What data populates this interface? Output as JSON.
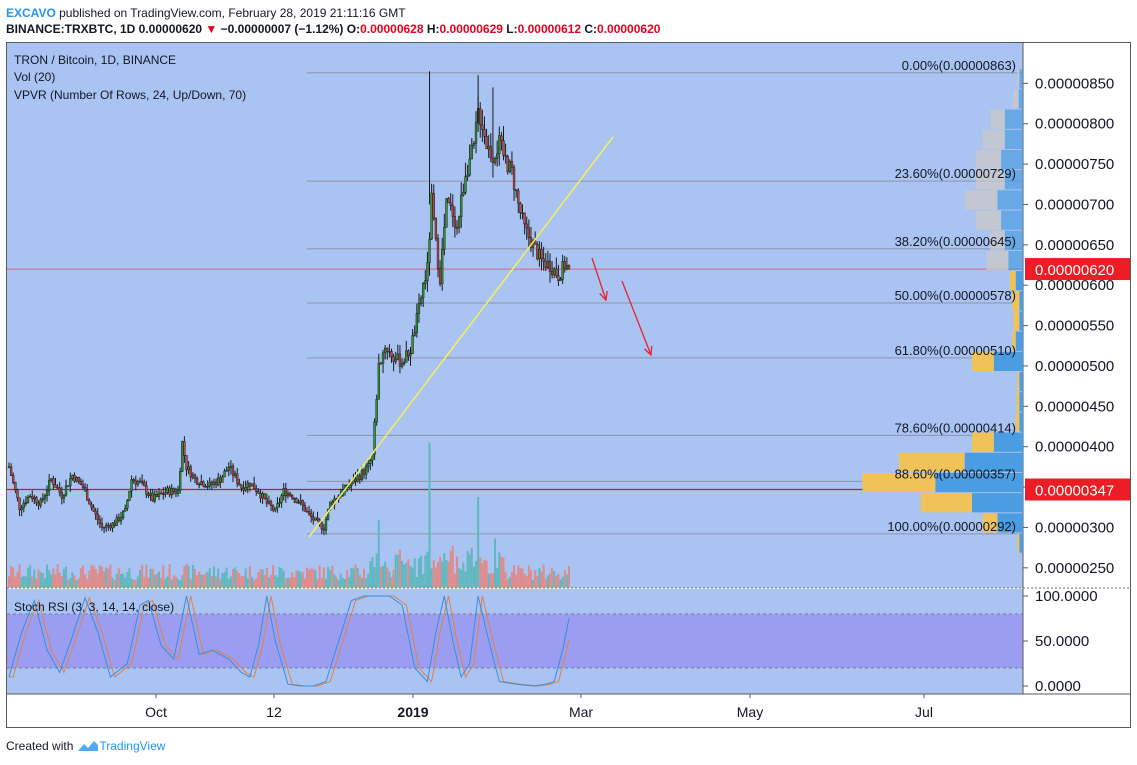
{
  "header": {
    "brand": "EXCAVO",
    "published": " published on TradingView.com, February 28, 2019 21:11:16 GMT",
    "symbol": "BINANCE:TRXBTC, 1D ",
    "last": "0.00000620",
    "change": "−0.00000007 (−1.12%)",
    "o_label": "O:",
    "o": "0.00000628",
    "h_label": "H:",
    "h": "0.00000629",
    "l_label": "L:",
    "l": "0.00000612",
    "c_label": "C:",
    "c": "0.00000620"
  },
  "legend": {
    "title": "TRON / Bitcoin, 1D, BINANCE",
    "vol": "Vol (20)",
    "vpvr": "VPVR (Number Of Rows, 24, Up/Down, 70)",
    "stoch": "Stoch RSI (3, 3, 14, 14, close)"
  },
  "footer": {
    "created": "Created with",
    "brand": "TradingView"
  },
  "colors": {
    "plot_bg": "#a9c3f2",
    "rsi_band": "#9b9df3",
    "up_candle": "#2e9a2e",
    "down_candle": "#c2454a",
    "vol_up": "#5fb8c0",
    "vol_down": "#e08a8a",
    "fib_line": "#8f95a8",
    "trendline": "#f5f05a",
    "arrow": "#e8222e",
    "price_tag": "#ee1c24",
    "vpvr_up": "#4b9de3",
    "vpvr_down": "#f0c35a",
    "vpvr_value_area_up": "#c3d2ec",
    "stoch_k": "#3b8ed8",
    "stoch_d": "#e0824a"
  },
  "chart_data": [
    {
      "type": "candlestick",
      "title": "TRON / Bitcoin, 1D, BINANCE",
      "y_axis_ticks": [
        "0.00000850",
        "0.00000800",
        "0.00000750",
        "0.00000700",
        "0.00000650",
        "0.00000600",
        "0.00000550",
        "0.00000500",
        "0.00000450",
        "0.00000400",
        "0.00000350",
        "0.00000300",
        "0.00000250"
      ],
      "y_tick_values": [
        850,
        800,
        750,
        700,
        650,
        600,
        550,
        500,
        450,
        400,
        350,
        300,
        250
      ],
      "y_unit_scale": "1e-8 BTC",
      "x_axis_ticks": [
        "Oct",
        "12",
        "2019",
        "Mar",
        "May",
        "Jul"
      ],
      "price_markers": [
        {
          "label": "0.00000620",
          "value": 620
        },
        {
          "label": "0.00000347",
          "value": 347
        }
      ],
      "fibonacci": [
        {
          "label": "0.00%(0.00000863)",
          "value": 863
        },
        {
          "label": "23.60%(0.00000729)",
          "value": 729
        },
        {
          "label": "38.20%(0.00000645)",
          "value": 645
        },
        {
          "label": "50.00%(0.00000578)",
          "value": 578
        },
        {
          "label": "61.80%(0.00000510)",
          "value": 510
        },
        {
          "label": "78.60%(0.00000414)",
          "value": 414
        },
        {
          "label": "88.60%(0.00000357)",
          "value": 357
        },
        {
          "label": "100.00%(0.00000292)",
          "value": 292
        }
      ],
      "anchors": [
        {
          "t": 0,
          "c": 375
        },
        {
          "t": 5,
          "c": 325
        },
        {
          "t": 10,
          "c": 340
        },
        {
          "t": 15,
          "c": 330
        },
        {
          "t": 20,
          "c": 360
        },
        {
          "t": 25,
          "c": 340
        },
        {
          "t": 30,
          "c": 365
        },
        {
          "t": 35,
          "c": 350
        },
        {
          "t": 40,
          "c": 320
        },
        {
          "t": 44,
          "c": 300
        },
        {
          "t": 50,
          "c": 305
        },
        {
          "t": 55,
          "c": 320
        },
        {
          "t": 58,
          "c": 360
        },
        {
          "t": 62,
          "c": 355
        },
        {
          "t": 68,
          "c": 335
        },
        {
          "t": 75,
          "c": 345
        },
        {
          "t": 80,
          "c": 345
        },
        {
          "t": 82,
          "c": 405
        },
        {
          "t": 84,
          "c": 375
        },
        {
          "t": 88,
          "c": 360
        },
        {
          "t": 95,
          "c": 352
        },
        {
          "t": 100,
          "c": 360
        },
        {
          "t": 104,
          "c": 375
        },
        {
          "t": 110,
          "c": 350
        },
        {
          "t": 114,
          "c": 355
        },
        {
          "t": 118,
          "c": 345
        },
        {
          "t": 122,
          "c": 330
        },
        {
          "t": 126,
          "c": 320
        },
        {
          "t": 130,
          "c": 345
        },
        {
          "t": 134,
          "c": 340
        },
        {
          "t": 138,
          "c": 330
        },
        {
          "t": 142,
          "c": 315
        },
        {
          "t": 146,
          "c": 305
        },
        {
          "t": 149,
          "c": 300
        },
        {
          "t": 152,
          "c": 330
        },
        {
          "t": 156,
          "c": 340
        },
        {
          "t": 160,
          "c": 350
        },
        {
          "t": 165,
          "c": 362
        },
        {
          "t": 170,
          "c": 375
        },
        {
          "t": 172,
          "c": 390
        },
        {
          "t": 175,
          "c": 500
        },
        {
          "t": 178,
          "c": 525
        },
        {
          "t": 182,
          "c": 510
        },
        {
          "t": 186,
          "c": 505
        },
        {
          "t": 190,
          "c": 520
        },
        {
          "t": 194,
          "c": 570
        },
        {
          "t": 196,
          "c": 600
        },
        {
          "t": 198,
          "c": 620
        },
        {
          "t": 200,
          "c": 705
        },
        {
          "t": 202,
          "c": 650
        },
        {
          "t": 204,
          "c": 610
        },
        {
          "t": 207,
          "c": 700
        },
        {
          "t": 210,
          "c": 690
        },
        {
          "t": 212,
          "c": 670
        },
        {
          "t": 216,
          "c": 740
        },
        {
          "t": 220,
          "c": 770
        },
        {
          "t": 222,
          "c": 815
        },
        {
          "t": 224,
          "c": 800
        },
        {
          "t": 226,
          "c": 775
        },
        {
          "t": 229,
          "c": 760
        },
        {
          "t": 232,
          "c": 775
        },
        {
          "t": 235,
          "c": 755
        },
        {
          "t": 238,
          "c": 740
        },
        {
          "t": 241,
          "c": 700
        },
        {
          "t": 244,
          "c": 670
        },
        {
          "t": 248,
          "c": 650
        },
        {
          "t": 252,
          "c": 630
        },
        {
          "t": 256,
          "c": 625
        },
        {
          "t": 260,
          "c": 612
        },
        {
          "t": 263,
          "c": 625
        },
        {
          "t": 265,
          "c": 620
        }
      ]
    },
    {
      "type": "bar",
      "title": "Vol (20)",
      "note": "daily volume histogram, relative scale",
      "spikes": [
        {
          "t": 199,
          "rel": 1.0
        },
        {
          "t": 175,
          "rel": 0.35
        },
        {
          "t": 222,
          "rel": 0.55
        },
        {
          "t": 230,
          "rel": 0.35
        }
      ]
    },
    {
      "type": "line",
      "title": "Stoch RSI (3, 3, 14, 14, close)",
      "y_axis_ticks": [
        "100.0000",
        "50.0000",
        "0.0000"
      ],
      "ylim": [
        0,
        100
      ],
      "bands": [
        20,
        80
      ],
      "k_anchors": [
        {
          "t": 0,
          "v": 10
        },
        {
          "t": 6,
          "v": 60
        },
        {
          "t": 12,
          "v": 95
        },
        {
          "t": 18,
          "v": 40
        },
        {
          "t": 24,
          "v": 15
        },
        {
          "t": 30,
          "v": 55
        },
        {
          "t": 36,
          "v": 98
        },
        {
          "t": 42,
          "v": 60
        },
        {
          "t": 48,
          "v": 10
        },
        {
          "t": 56,
          "v": 25
        },
        {
          "t": 62,
          "v": 90
        },
        {
          "t": 66,
          "v": 95
        },
        {
          "t": 72,
          "v": 45
        },
        {
          "t": 78,
          "v": 30
        },
        {
          "t": 84,
          "v": 100
        },
        {
          "t": 90,
          "v": 35
        },
        {
          "t": 96,
          "v": 40
        },
        {
          "t": 104,
          "v": 30
        },
        {
          "t": 110,
          "v": 15
        },
        {
          "t": 114,
          "v": 10
        },
        {
          "t": 118,
          "v": 45
        },
        {
          "t": 122,
          "v": 100
        },
        {
          "t": 126,
          "v": 50
        },
        {
          "t": 132,
          "v": 2
        },
        {
          "t": 138,
          "v": 0
        },
        {
          "t": 144,
          "v": 0
        },
        {
          "t": 150,
          "v": 5
        },
        {
          "t": 156,
          "v": 50
        },
        {
          "t": 162,
          "v": 95
        },
        {
          "t": 168,
          "v": 100
        },
        {
          "t": 174,
          "v": 100
        },
        {
          "t": 180,
          "v": 100
        },
        {
          "t": 186,
          "v": 90
        },
        {
          "t": 192,
          "v": 20
        },
        {
          "t": 198,
          "v": 5
        },
        {
          "t": 202,
          "v": 60
        },
        {
          "t": 206,
          "v": 100
        },
        {
          "t": 210,
          "v": 50
        },
        {
          "t": 214,
          "v": 10
        },
        {
          "t": 218,
          "v": 25
        },
        {
          "t": 222,
          "v": 100
        },
        {
          "t": 226,
          "v": 60
        },
        {
          "t": 232,
          "v": 5
        },
        {
          "t": 240,
          "v": 2
        },
        {
          "t": 248,
          "v": 0
        },
        {
          "t": 254,
          "v": 2
        },
        {
          "t": 258,
          "v": 5
        },
        {
          "t": 262,
          "v": 40
        },
        {
          "t": 265,
          "v": 75
        }
      ]
    },
    {
      "type": "bar",
      "title": "VPVR (Number Of Rows, 24, Up/Down, 70)",
      "rows": [
        {
          "price": 855,
          "up": 0.5,
          "down": 0.3,
          "va": true
        },
        {
          "price": 830,
          "up": 0.6,
          "down": 0.8,
          "va": true
        },
        {
          "price": 805,
          "up": 2.5,
          "down": 2.0,
          "va": true
        },
        {
          "price": 780,
          "up": 2.5,
          "down": 3.0,
          "va": true
        },
        {
          "price": 755,
          "up": 3.0,
          "down": 3.5,
          "va": true
        },
        {
          "price": 730,
          "up": 2.5,
          "down": 4.0,
          "va": true
        },
        {
          "price": 705,
          "up": 3.5,
          "down": 4.5,
          "va": true
        },
        {
          "price": 680,
          "up": 3.0,
          "down": 3.5,
          "va": true
        },
        {
          "price": 655,
          "up": 2.5,
          "down": 2.0,
          "va": true
        },
        {
          "price": 630,
          "up": 2.0,
          "down": 3.0,
          "va": true
        },
        {
          "price": 605,
          "up": 1.0,
          "down": 0.8,
          "va": false
        },
        {
          "price": 580,
          "up": 0.5,
          "down": 1.0,
          "va": false
        },
        {
          "price": 555,
          "up": 0.5,
          "down": 0.8,
          "va": false
        },
        {
          "price": 530,
          "up": 1.0,
          "down": 0.5,
          "va": false
        },
        {
          "price": 505,
          "up": 4.0,
          "down": 3.0,
          "va": false
        },
        {
          "price": 480,
          "up": 0.5,
          "down": 0.3,
          "va": false
        },
        {
          "price": 455,
          "up": 0.5,
          "down": 0.4,
          "va": false
        },
        {
          "price": 430,
          "up": 0.5,
          "down": 0.5,
          "va": false
        },
        {
          "price": 405,
          "up": 4.0,
          "down": 3.0,
          "va": false
        },
        {
          "price": 380,
          "up": 8.0,
          "down": 9.0,
          "va": false
        },
        {
          "price": 355,
          "up": 12.0,
          "down": 10.0,
          "va": false
        },
        {
          "price": 330,
          "up": 7.0,
          "down": 7.0,
          "va": false
        },
        {
          "price": 305,
          "up": 3.5,
          "down": 2.0,
          "va": false
        },
        {
          "price": 280,
          "up": 0.5,
          "down": 0.3,
          "va": false
        }
      ]
    }
  ]
}
